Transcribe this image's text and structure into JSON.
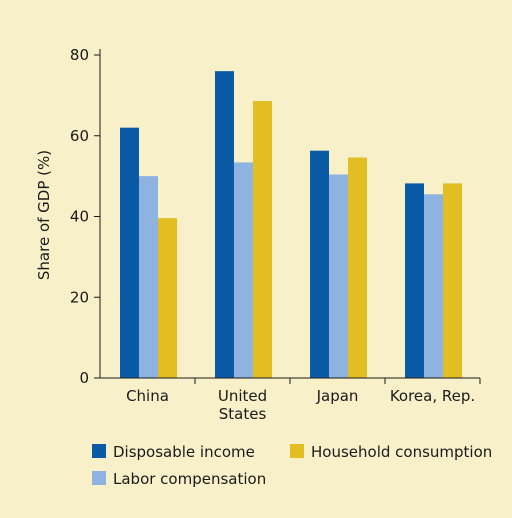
{
  "chart_data": {
    "type": "bar",
    "title": "",
    "xlabel": "",
    "ylabel": "Share of GDP (%)",
    "ylim": [
      0,
      80
    ],
    "yticks": [
      0,
      20,
      40,
      60,
      80
    ],
    "categories": [
      "China",
      "United States",
      "Japan",
      "Korea, Rep."
    ],
    "category_label_lines": [
      [
        "China"
      ],
      [
        "United",
        "States"
      ],
      [
        "Japan"
      ],
      [
        "Korea, Rep."
      ]
    ],
    "series": [
      {
        "name": "Disposable income",
        "color": "#0a5aa5",
        "values": [
          62,
          76,
          56.3,
          48.2
        ]
      },
      {
        "name": "Labor compensation",
        "color": "#8fb3e0",
        "values": [
          50,
          53.4,
          50.4,
          45.5
        ]
      },
      {
        "name": "Household consumption",
        "color": "#e3be22",
        "values": [
          39.6,
          68.6,
          54.6,
          48.2
        ]
      }
    ],
    "legend_position": "bottom",
    "grid": false,
    "background": "#f7f0c8"
  }
}
